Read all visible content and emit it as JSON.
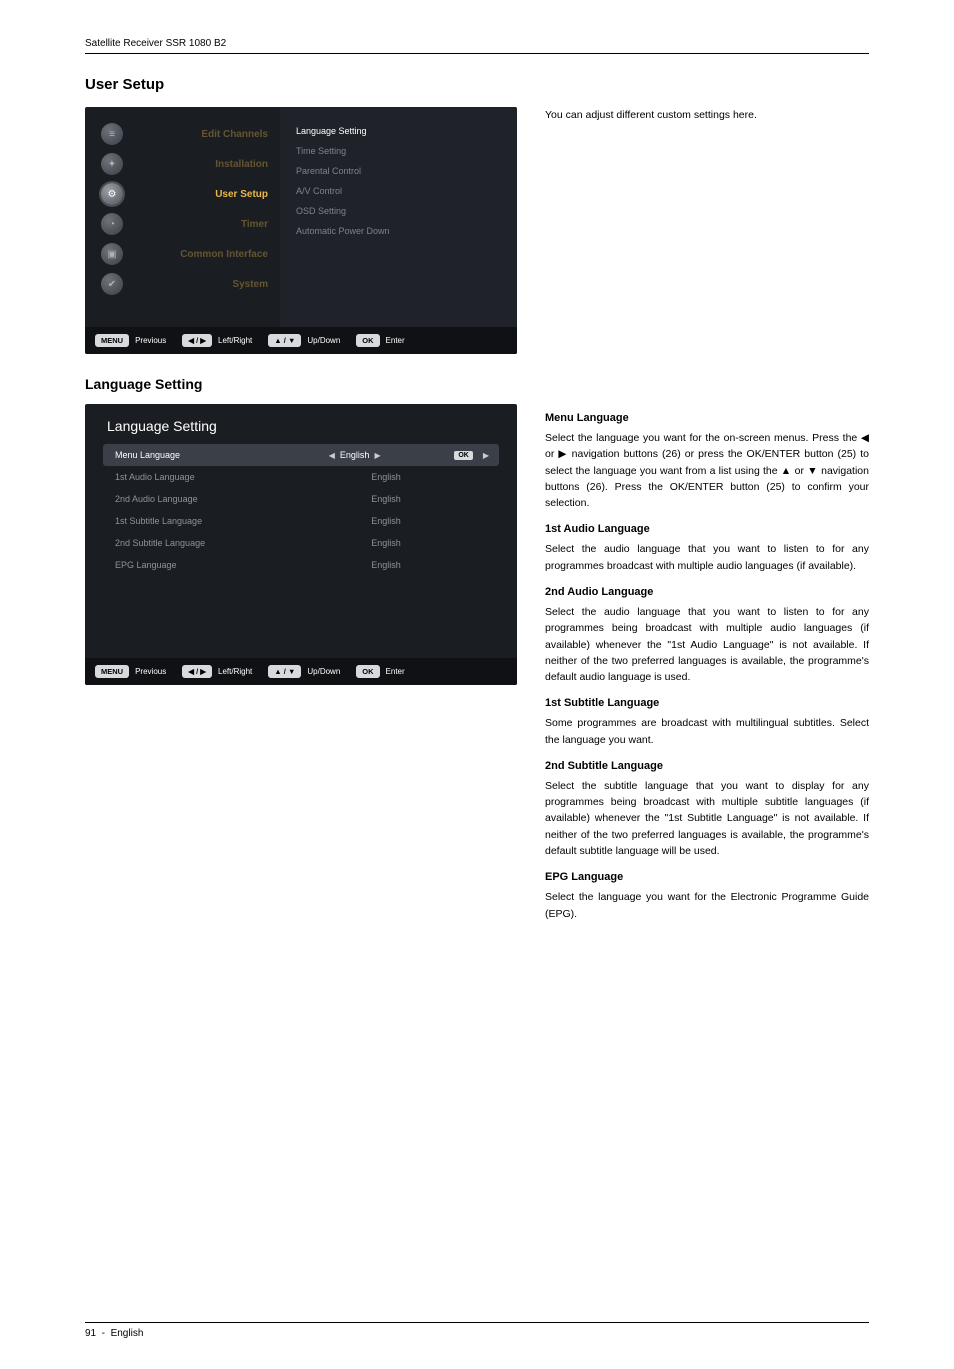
{
  "doc": {
    "product_line": "Satellite Receiver SSR 1080 B2",
    "page_number": "91",
    "footer_lang": "English",
    "page_title": "User Setup",
    "intro_text": "You can adjust different custom settings here."
  },
  "screenshot1": {
    "menu_items": [
      {
        "label": "Edit Channels",
        "glyph": "≡"
      },
      {
        "label": "Installation",
        "glyph": "✦"
      },
      {
        "label": "User Setup",
        "glyph": "⚙"
      },
      {
        "label": "Timer",
        "glyph": "◔"
      },
      {
        "label": "Common Interface",
        "glyph": "▣"
      },
      {
        "label": "System",
        "glyph": "✔"
      }
    ],
    "active_index": 2,
    "options": [
      "Language Setting",
      "Time Setting",
      "Parental Control",
      "A/V Control",
      "OSD Setting",
      "Automatic Power Down"
    ],
    "selected_option_index": 0,
    "bottombar": {
      "menu_btn": "MENU",
      "menu_label": "Previous",
      "lr_btn": "◀ / ▶",
      "lr_label": "Left/Right",
      "ud_btn": "▲ / ▼",
      "ud_label": "Up/Down",
      "ok_btn": "OK",
      "ok_label": "Enter"
    }
  },
  "screenshot2": {
    "title": "Language Setting",
    "rows": [
      {
        "name": "Menu Language",
        "value": "English"
      },
      {
        "name": "1st Audio Language",
        "value": "English"
      },
      {
        "name": "2nd Audio Language",
        "value": "English"
      },
      {
        "name": "1st Subtitle Language",
        "value": "English"
      },
      {
        "name": "2nd Subtitle Language",
        "value": "English"
      },
      {
        "name": "EPG Language",
        "value": "English"
      }
    ],
    "selected_row_index": 0,
    "bottombar": {
      "menu_btn": "MENU",
      "menu_label": "Previous",
      "lr_btn": "◀ / ▶",
      "lr_label": "Left/Right",
      "ud_btn": "▲ / ▼",
      "ud_label": "Up/Down",
      "ok_btn": "OK",
      "ok_label": "Enter"
    }
  },
  "section2_title": "Language Setting",
  "body": {
    "menu_lang_h": "Menu Language",
    "menu_lang_p": "Select the language you want for the on-screen menus. Press the ◀ or ▶ navigation buttons (26) or press the OK/ENTER button (25) to select the language you want from a list using the ▲ or ▼ navigation buttons (26). Press the OK/ENTER button (25) to confirm your selection.",
    "audio1_h": "1st Audio Language",
    "audio1_p": "Select the audio language that you want to listen to for any programmes broadcast with multiple audio languages (if available).",
    "audio2_h": "2nd Audio Language",
    "audio2_p": "Select the audio language that you want to listen to for any programmes being broadcast with multiple audio languages (if available) whenever the \"1st Audio Language\" is not available. If neither of the two preferred languages is available, the programme's default audio language is used.",
    "sub1_h": "1st Subtitle Language",
    "sub1_p": "Some programmes are broadcast with multilingual subtitles. Select the language you want.",
    "sub2_h": "2nd Subtitle Language",
    "sub2_p": "Select the subtitle language that you want to display for any programmes being broadcast with multiple subtitle languages (if available) whenever the \"1st Subtitle Language\" is not available. If neither of the two preferred languages is available, the programme's default subtitle language will be used.",
    "epg_h": "EPG Language",
    "epg_p": "Select the language you want for the Electronic Programme Guide (EPG)."
  },
  "style": {
    "bg": "#1a1d22",
    "accent": "#e9b94a",
    "dim_text": "#7c838c",
    "sel_row_bg": "#3a3f48",
    "pill_bg": "#d8dadd"
  }
}
